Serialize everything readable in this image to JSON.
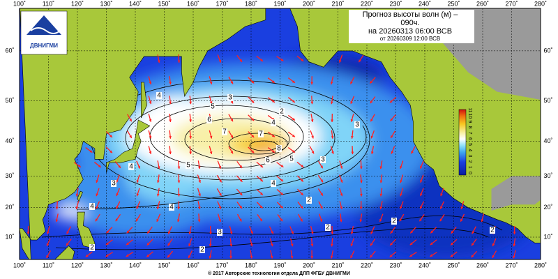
{
  "header": {
    "title": "Прогноз высоты волн (м) –",
    "title_hours": "090ч.",
    "valid": "на 20260313 06:00 ВСВ",
    "issued": "от 20260309 12:00 ВСВ"
  },
  "logo": "ДВНИГМИ",
  "footer": "© 2017 Авторские технологии отдела ДЛП ФГБУ ДВНИГМИ",
  "longitude_labels": [
    "100˚",
    "110˚",
    "120˚",
    "130˚",
    "140˚",
    "150˚",
    "160˚",
    "170˚",
    "180˚",
    "190˚",
    "200˚",
    "210˚",
    "220˚",
    "230˚",
    "240˚",
    "250˚",
    "260˚",
    "270˚",
    "280˚"
  ],
  "latitude_labels": [
    "60˚",
    "50˚",
    "40˚",
    "30˚",
    "20˚",
    "10˚"
  ],
  "colorbar_labels": [
    "0",
    "1",
    "2",
    "3",
    "4",
    "5",
    "6",
    "7",
    "8",
    "9",
    "10",
    "11"
  ],
  "contour_labels": [
    "4",
    "3",
    "5",
    "2",
    "6",
    "4",
    "7",
    "7",
    "8",
    "6",
    "5",
    "3",
    "5",
    "4",
    "3",
    "4",
    "4",
    "4",
    "2",
    "3",
    "3",
    "2",
    "2",
    "2",
    "2",
    "2"
  ]
}
